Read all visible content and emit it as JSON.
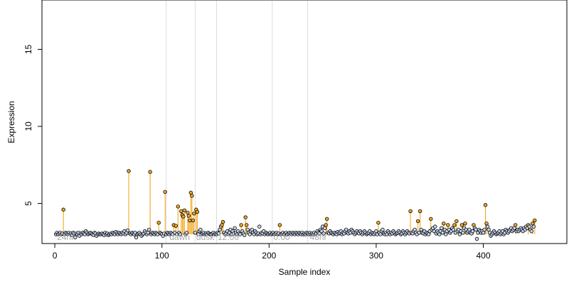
{
  "chart_data": {
    "type": "scatter",
    "xlabel": "Sample index",
    "ylabel": "Expression",
    "xlim": [
      -12,
      478
    ],
    "ylim": [
      2.4,
      18.2
    ],
    "x_ticks": [
      0,
      100,
      200,
      300,
      400
    ],
    "y_ticks": [
      5,
      10,
      15
    ],
    "grid": false,
    "legend": "none",
    "baseline": 3.0,
    "phase_boundaries": [
      104,
      131,
      151,
      203,
      236
    ],
    "phase_labels": [
      {
        "x": 2,
        "text": "24hr"
      },
      {
        "x": 107,
        "text": "dawn"
      },
      {
        "x": 132,
        "text": "dusk"
      },
      {
        "x": 152,
        "text": "12:00"
      },
      {
        "x": 204,
        "text": "0:00"
      },
      {
        "x": 238,
        "text": "48hr"
      }
    ],
    "colors": {
      "point_fill_normal": "#c9d6ee",
      "point_fill_high": "#f5a623",
      "point_stroke": "#000000",
      "stem": "#f0a010",
      "phase_line": "#dddddd",
      "phase_text": "#aaaaaa"
    },
    "y": [
      3.0,
      3.1,
      3.0,
      3.05,
      3.1,
      3.0,
      3.05,
      4.6,
      3.0,
      3.1,
      3.05,
      3.0,
      3.1,
      3.0,
      3.05,
      2.95,
      3.1,
      3.05,
      2.8,
      3.05,
      3.0,
      3.1,
      2.9,
      3.05,
      3.0,
      3.1,
      3.05,
      3.0,
      3.2,
      3.1,
      3.0,
      3.05,
      3.1,
      3.05,
      3.0,
      2.95,
      3.1,
      3.05,
      2.9,
      3.0,
      3.05,
      3.0,
      3.0,
      3.05,
      3.0,
      2.95,
      3.1,
      3.0,
      3.05,
      2.95,
      3.0,
      3.05,
      3.0,
      3.1,
      3.05,
      3.0,
      3.15,
      3.05,
      3.0,
      3.1,
      3.05,
      3.0,
      3.1,
      3.05,
      3.2,
      3.0,
      3.1,
      3.25,
      7.1,
      3.05,
      3.0,
      3.1,
      3.05,
      3.0,
      3.1,
      2.8,
      3.0,
      3.05,
      3.1,
      3.0,
      2.9,
      3.0,
      3.05,
      3.2,
      3.1,
      3.0,
      3.1,
      3.3,
      7.05,
      3.0,
      3.1,
      3.05,
      3.0,
      3.1,
      3.05,
      3.0,
      3.75,
      3.1,
      3.05,
      3.0,
      2.9,
      3.05,
      5.75,
      3.0,
      3.1,
      3.05,
      3.0,
      3.1,
      3.05,
      3.0,
      3.6,
      3.1,
      3.55,
      3.0,
      4.8,
      3.1,
      3.0,
      4.5,
      4.25,
      4.15,
      4.55,
      3.0,
      3.1,
      4.4,
      4.2,
      3.9,
      5.7,
      5.5,
      3.9,
      4.35,
      3.1,
      4.6,
      4.45,
      3.0,
      3.2,
      3.3,
      3.0,
      3.05,
      3.1,
      3.0,
      3.05,
      3.0,
      3.1,
      3.05,
      3.0,
      3.0,
      3.05,
      3.1,
      3.0,
      3.05,
      3.0,
      3.1,
      3.05,
      3.3,
      3.5,
      3.6,
      3.8,
      3.1,
      3.0,
      3.05,
      3.2,
      3.0,
      3.1,
      3.3,
      3.0,
      3.2,
      3.05,
      3.4,
      3.1,
      3.0,
      3.2,
      3.05,
      3.0,
      3.6,
      3.2,
      3.05,
      2.95,
      4.1,
      3.6,
      3.3,
      3.1,
      3.0,
      3.2,
      3.3,
      3.1,
      3.0,
      3.2,
      3.1,
      3.0,
      3.05,
      3.5,
      3.0,
      3.1,
      3.05,
      3.2,
      3.0,
      3.1,
      3.05,
      3.0,
      3.05,
      3.1,
      3.0,
      3.05,
      3.1,
      3.0,
      3.05,
      3.1,
      3.0,
      3.05,
      3.6,
      3.0,
      3.05,
      3.1,
      3.0,
      3.05,
      3.1,
      3.0,
      3.05,
      3.1,
      3.05,
      3.0,
      3.1,
      3.05,
      3.0,
      3.1,
      3.05,
      3.0,
      3.1,
      3.05,
      3.0,
      3.1,
      3.0,
      3.05,
      3.0,
      3.1,
      3.05,
      3.0,
      3.1,
      3.0,
      3.05,
      3.0,
      3.1,
      3.0,
      3.05,
      3.2,
      3.1,
      3.05,
      3.3,
      3.2,
      3.5,
      3.05,
      3.4,
      3.6,
      4.0,
      3.1,
      3.05,
      3.2,
      3.1,
      3.05,
      3.0,
      3.1,
      3.05,
      3.0,
      3.15,
      3.05,
      3.1,
      3.2,
      3.0,
      3.1,
      3.05,
      3.2,
      3.3,
      3.1,
      3.05,
      3.2,
      3.1,
      3.3,
      3.2,
      3.1,
      3.0,
      3.1,
      3.2,
      3.1,
      3.05,
      3.2,
      3.1,
      3.0,
      3.1,
      3.2,
      3.1,
      3.0,
      3.05,
      3.1,
      3.2,
      3.0,
      3.1,
      3.05,
      3.0,
      3.1,
      3.2,
      3.0,
      3.75,
      3.1,
      3.0,
      3.2,
      3.3,
      3.05,
      3.0,
      3.1,
      3.0,
      3.2,
      3.1,
      3.0,
      3.1,
      3.05,
      3.2,
      3.1,
      3.0,
      3.05,
      3.1,
      3.2,
      3.1,
      3.0,
      3.05,
      3.2,
      3.1,
      3.0,
      3.1,
      3.2,
      3.1,
      3.05,
      4.5,
      3.1,
      3.05,
      3.2,
      3.3,
      3.1,
      3.0,
      3.85,
      3.1,
      4.5,
      3.3,
      3.1,
      3.05,
      3.2,
      3.0,
      3.1,
      3.05,
      3.0,
      3.2,
      4.0,
      3.3,
      3.4,
      3.2,
      3.5,
      3.05,
      3.2,
      3.1,
      3.0,
      3.2,
      3.4,
      3.1,
      3.7,
      3.3,
      3.0,
      3.2,
      3.6,
      3.3,
      3.1,
      3.2,
      3.4,
      3.3,
      3.6,
      3.1,
      3.85,
      3.2,
      3.3,
      3.0,
      3.2,
      3.6,
      3.1,
      3.4,
      3.7,
      3.3,
      3.1,
      3.2,
      3.3,
      3.1,
      3.05,
      3.2,
      3.6,
      3.4,
      3.3,
      2.7,
      3.1,
      3.3,
      3.2,
      3.1,
      3.2,
      3.1,
      3.3,
      4.9,
      3.7,
      3.5,
      3.3,
      3.1,
      2.9,
      3.0,
      3.1,
      3.2,
      3.1,
      3.0,
      3.05,
      3.1,
      3.2,
      3.0,
      3.1,
      3.2,
      3.0,
      3.1,
      3.3,
      3.2,
      3.1,
      3.2,
      3.3,
      3.4,
      3.2,
      3.3,
      3.4,
      3.6,
      3.2,
      3.3,
      3.2,
      3.3,
      3.4,
      3.3,
      3.2,
      3.4,
      3.3,
      3.5,
      3.4,
      3.6,
      3.5,
      3.3,
      3.2,
      3.7,
      3.5,
      3.9
    ]
  }
}
